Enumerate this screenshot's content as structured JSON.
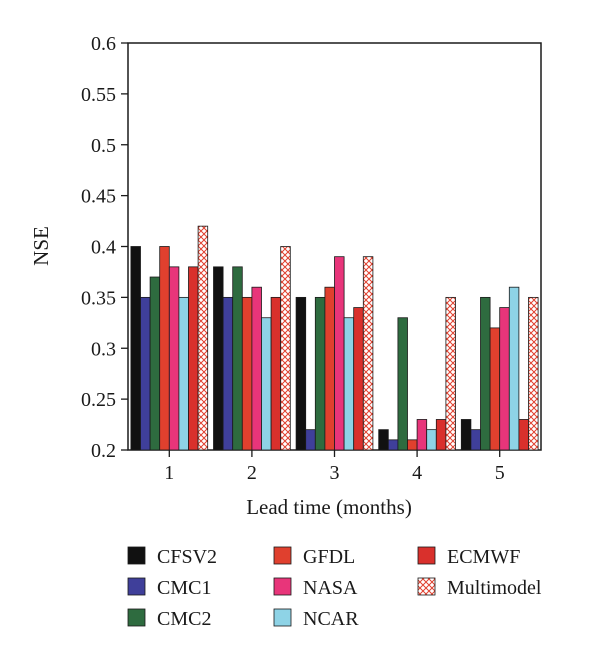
{
  "chart_data": {
    "type": "bar",
    "xlabel": "Lead time (months)",
    "ylabel": "NSE",
    "ylim": [
      0.2,
      0.6
    ],
    "yticks": [
      "0.2",
      "0.25",
      "0.3",
      "0.35",
      "0.4",
      "0.45",
      "0.5",
      "0.55",
      "0.6"
    ],
    "categories": [
      "1",
      "2",
      "3",
      "4",
      "5"
    ],
    "grid": false,
    "legend_position": "bottom",
    "series": [
      {
        "name": "CFSV2",
        "color": "#111111",
        "pattern": "solid",
        "values": [
          0.4,
          0.38,
          0.35,
          0.22,
          0.23
        ]
      },
      {
        "name": "CMC1",
        "color": "#3f3f9a",
        "pattern": "solid",
        "values": [
          0.35,
          0.35,
          0.22,
          0.21,
          0.22
        ]
      },
      {
        "name": "CMC2",
        "color": "#2e6b3f",
        "pattern": "solid",
        "values": [
          0.37,
          0.38,
          0.35,
          0.33,
          0.35
        ]
      },
      {
        "name": "GFDL",
        "color": "#e0402e",
        "pattern": "solid",
        "values": [
          0.4,
          0.35,
          0.36,
          0.21,
          0.32
        ]
      },
      {
        "name": "NASA",
        "color": "#e8357a",
        "pattern": "solid",
        "values": [
          0.38,
          0.36,
          0.39,
          0.23,
          0.34
        ]
      },
      {
        "name": "NCAR",
        "color": "#8ed3e6",
        "pattern": "solid",
        "values": [
          0.35,
          0.33,
          0.33,
          0.22,
          0.36
        ]
      },
      {
        "name": "ECMWF",
        "color": "#d9302c",
        "pattern": "solid",
        "values": [
          0.38,
          0.35,
          0.34,
          0.23,
          0.23
        ]
      },
      {
        "name": "Multimodel",
        "color": "#e0402e",
        "pattern": "crosshatch",
        "values": [
          0.42,
          0.4,
          0.39,
          0.35,
          0.35
        ]
      }
    ]
  }
}
